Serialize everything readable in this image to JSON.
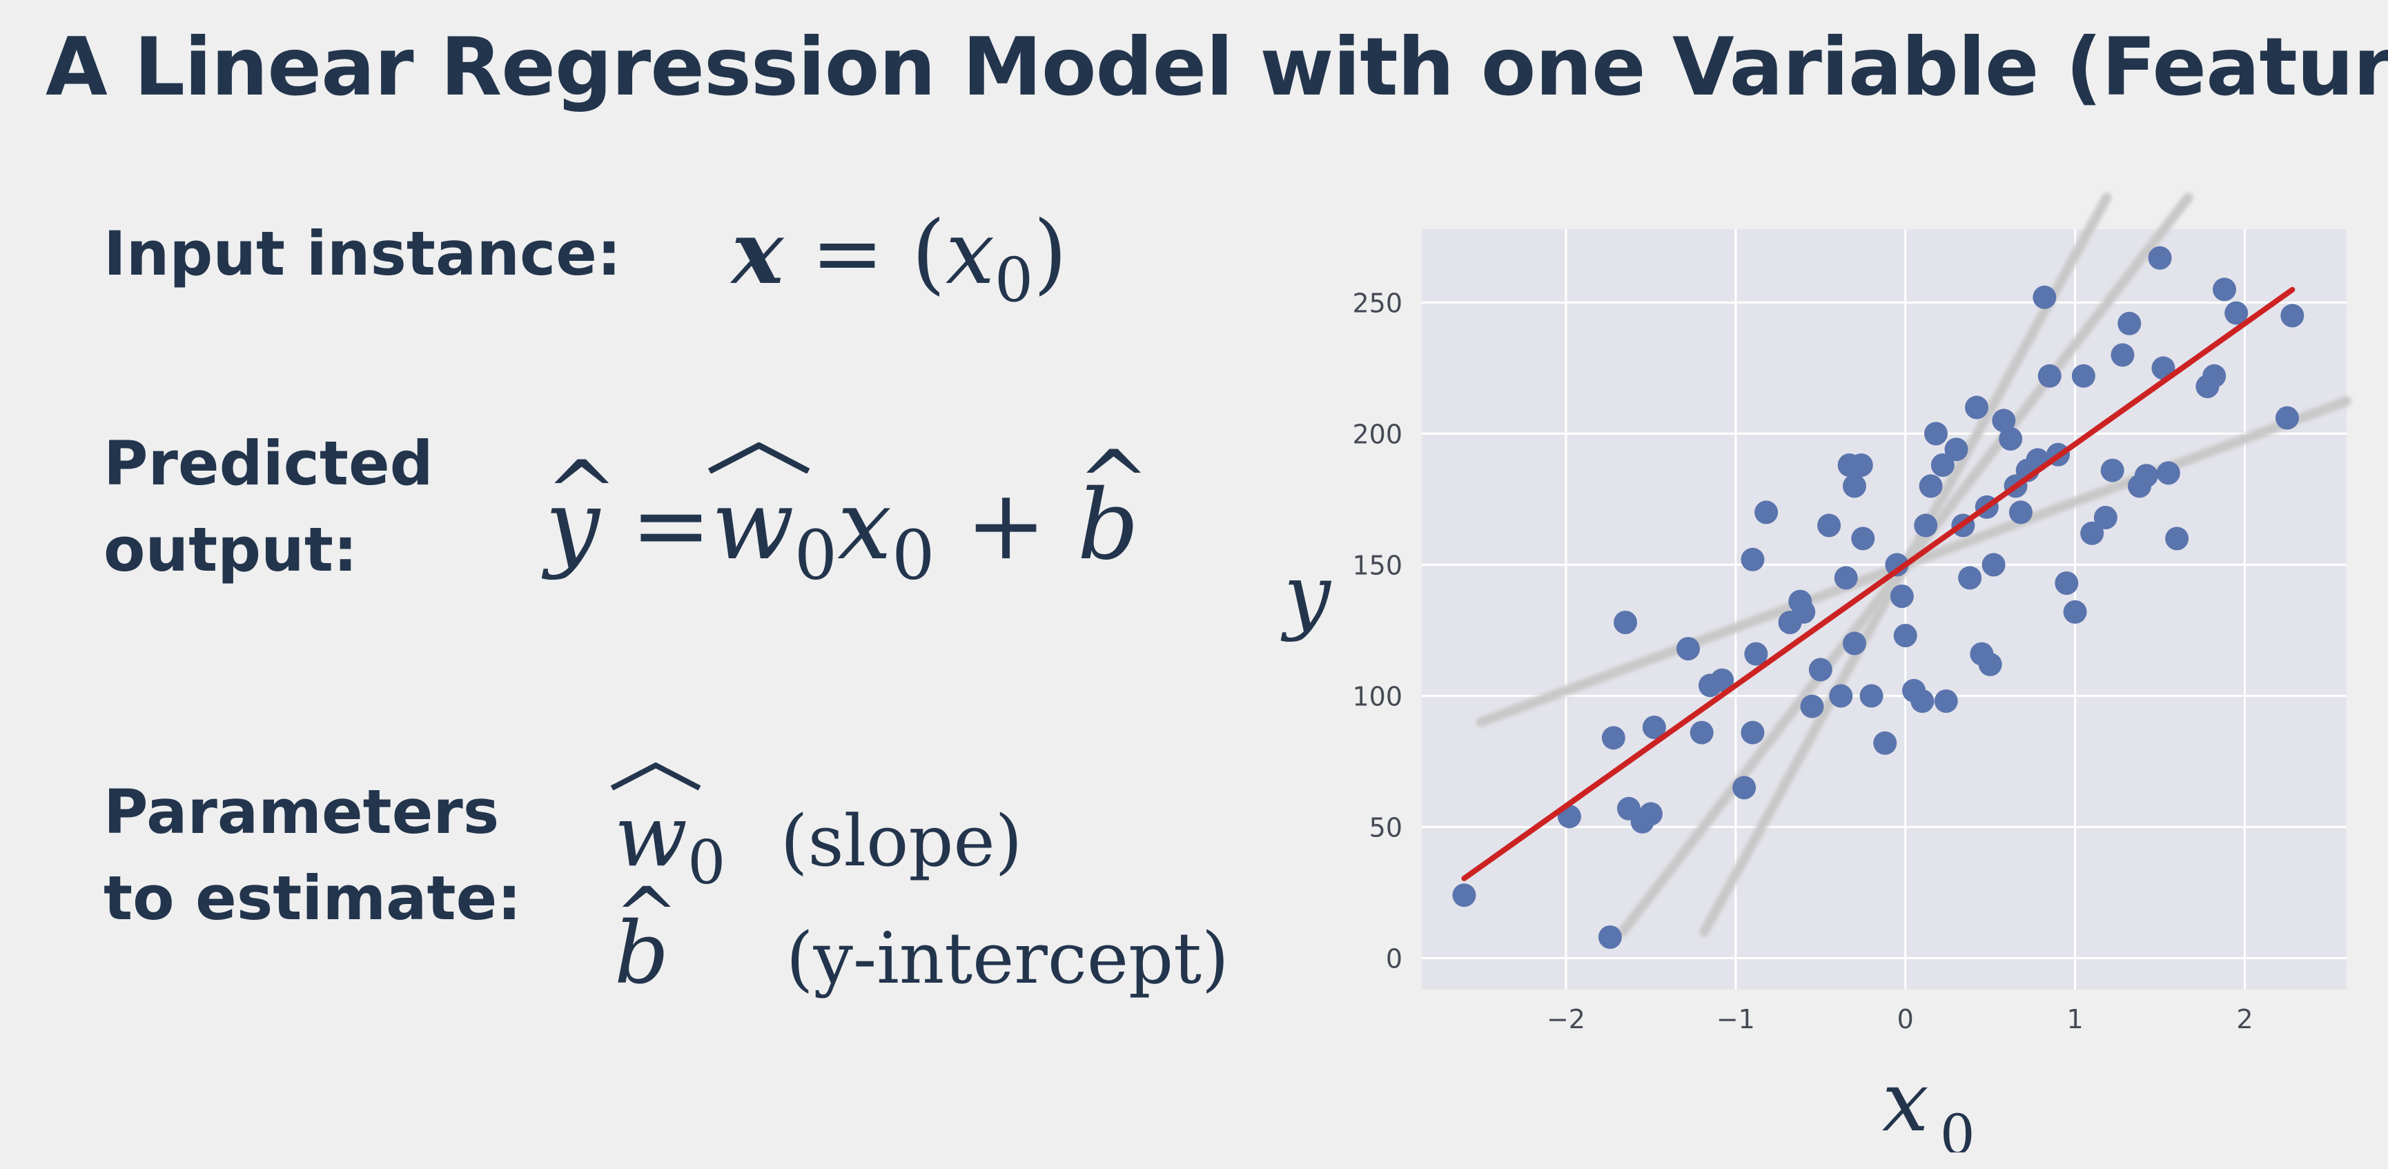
{
  "slide": {
    "title": "A Linear Regression Model with one Variable (Feature)",
    "input_label": "Input instance:",
    "predicted_label_line1": "Predicted",
    "predicted_label_line2": "output:",
    "parameters_label_line1": "Parameters",
    "parameters_label_line2": "to estimate:",
    "input_formula": {
      "lhs": "x",
      "eq": " = (",
      "var": "x",
      "sub": "0",
      "close": ")"
    },
    "predicted_formula": {
      "yhat": "y",
      "eq": " =",
      "w": "w",
      "wsub": "0",
      "x": "x",
      "xsub": "0",
      "plus": " + ",
      "b": "b"
    },
    "param_w": {
      "w": "w",
      "sub": "0",
      "desc": "(slope)"
    },
    "param_b": {
      "b": "b",
      "desc": "(y-intercept)"
    }
  },
  "chart_data": {
    "type": "scatter",
    "xlabel": "x",
    "xlabel_sub": "0",
    "ylabel": "y",
    "xlim": [
      -2.85,
      2.6
    ],
    "ylim": [
      -12,
      278
    ],
    "xticks": [
      -2,
      -1,
      0,
      1,
      2
    ],
    "yticks": [
      0,
      50,
      100,
      150,
      200,
      250
    ],
    "grid": true,
    "background": "#e3e3eb",
    "point_color": "#5a74ad",
    "fit_line_color": "#cc2222",
    "alt_line_color": "#c8c8c8",
    "points": [
      [
        -2.6,
        24
      ],
      [
        -1.98,
        54
      ],
      [
        -1.74,
        8
      ],
      [
        -1.72,
        84
      ],
      [
        -1.65,
        128
      ],
      [
        -1.63,
        57
      ],
      [
        -1.55,
        52
      ],
      [
        -1.5,
        55
      ],
      [
        -1.48,
        88
      ],
      [
        -1.28,
        118
      ],
      [
        -1.2,
        86
      ],
      [
        -1.15,
        104
      ],
      [
        -1.08,
        106
      ],
      [
        -0.95,
        65
      ],
      [
        -0.9,
        86
      ],
      [
        -0.88,
        116
      ],
      [
        -0.9,
        152
      ],
      [
        -0.82,
        170
      ],
      [
        -0.68,
        128
      ],
      [
        -0.62,
        136
      ],
      [
        -0.55,
        96
      ],
      [
        -0.5,
        110
      ],
      [
        -0.45,
        165
      ],
      [
        -0.38,
        100
      ],
      [
        -0.33,
        188
      ],
      [
        -0.3,
        180
      ],
      [
        -0.26,
        188
      ],
      [
        -0.2,
        100
      ],
      [
        -0.35,
        145
      ],
      [
        -0.3,
        120
      ],
      [
        -0.25,
        160
      ],
      [
        -0.12,
        82
      ],
      [
        -0.05,
        150
      ],
      [
        -0.02,
        138
      ],
      [
        0.05,
        102
      ],
      [
        0.1,
        98
      ],
      [
        0.12,
        165
      ],
      [
        0.15,
        180
      ],
      [
        0.18,
        200
      ],
      [
        0.22,
        188
      ],
      [
        0.24,
        98
      ],
      [
        0.3,
        194
      ],
      [
        0.34,
        165
      ],
      [
        0.38,
        145
      ],
      [
        0.42,
        210
      ],
      [
        0.45,
        116
      ],
      [
        0.48,
        172
      ],
      [
        0.5,
        112
      ],
      [
        0.52,
        150
      ],
      [
        0.58,
        205
      ],
      [
        0.62,
        198
      ],
      [
        0.65,
        180
      ],
      [
        0.68,
        170
      ],
      [
        0.72,
        186
      ],
      [
        0.78,
        190
      ],
      [
        0.82,
        252
      ],
      [
        0.85,
        222
      ],
      [
        0.9,
        192
      ],
      [
        0.95,
        143
      ],
      [
        1.0,
        132
      ],
      [
        1.05,
        222
      ],
      [
        1.1,
        162
      ],
      [
        1.18,
        168
      ],
      [
        1.22,
        186
      ],
      [
        1.28,
        230
      ],
      [
        1.32,
        242
      ],
      [
        1.38,
        180
      ],
      [
        1.42,
        184
      ],
      [
        1.5,
        267
      ],
      [
        1.52,
        225
      ],
      [
        1.55,
        185
      ],
      [
        1.6,
        160
      ],
      [
        1.78,
        218
      ],
      [
        1.82,
        222
      ],
      [
        1.88,
        255
      ],
      [
        1.95,
        246
      ],
      [
        2.28,
        245
      ],
      [
        2.25,
        206
      ],
      [
        0.0,
        123
      ],
      [
        -0.6,
        132
      ]
    ],
    "fit_line": {
      "slope": 46,
      "intercept": 150
    },
    "alt_lines": [
      {
        "slope": 24,
        "intercept": 150
      },
      {
        "slope": 118,
        "intercept": 150
      },
      {
        "slope": 84,
        "intercept": 150
      }
    ]
  }
}
